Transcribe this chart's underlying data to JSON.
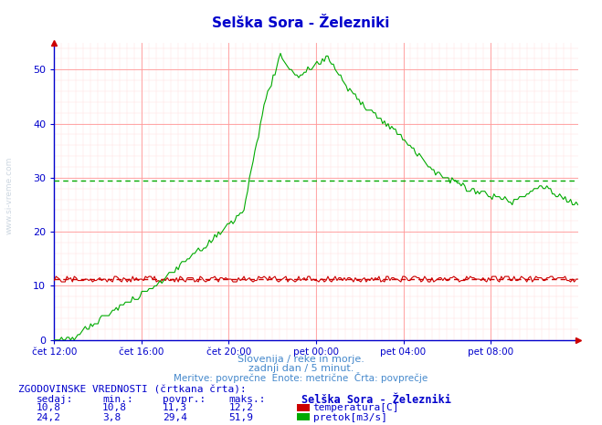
{
  "title": "Selška Sora - Železniki",
  "title_color": "#0000cc",
  "bg_color": "#ffffff",
  "plot_bg_color": "#ffffff",
  "grid_color_major": "#ff9999",
  "grid_color_minor": "#ffdddd",
  "x_labels": [
    "čet 12:00",
    "čet 16:00",
    "čet 20:00",
    "pet 00:00",
    "pet 04:00",
    "pet 08:00"
  ],
  "ylim": [
    0,
    55
  ],
  "y_ticks": [
    0,
    10,
    20,
    30,
    40,
    50
  ],
  "temp_avg": 11.3,
  "flow_avg": 29.4,
  "subtitle1": "Slovenija / reke in morje.",
  "subtitle2": "zadnji dan / 5 minut.",
  "subtitle3": "Meritve: povprečne  Enote: metrične  Črta: povprečje",
  "subtitle_color": "#4488cc",
  "footer_title": "ZGODOVINSKE VREDNOSTI (črtkana črta):",
  "col_headers": [
    "sedaj:",
    "min.:",
    "povpr.:",
    "maks.:"
  ],
  "temp_row": [
    "10,8",
    "10,8",
    "11,3",
    "12,2"
  ],
  "flow_row": [
    "24,2",
    "3,8",
    "29,4",
    "51,9"
  ],
  "legend_title": "Selška Sora - Železniki",
  "legend_temp": "temperatura[C]",
  "legend_flow": "pretok[m3/s]",
  "temp_color": "#cc0000",
  "flow_color": "#00aa00",
  "axis_color": "#0000cc",
  "watermark": "www.si-vreme.com",
  "n_points": 288
}
